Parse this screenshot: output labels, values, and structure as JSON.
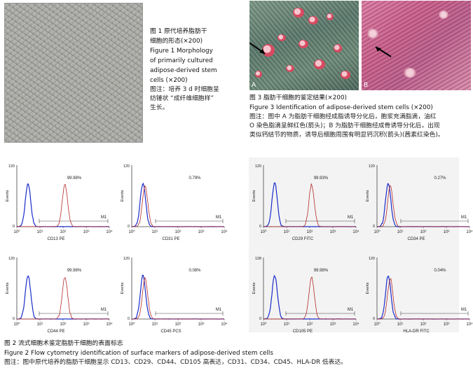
{
  "figure1": {
    "title_cn": "图 1   原代培养脂肪干细胞的形态(×200)",
    "title_cn_l1": "图 1   原代培养脂肪干",
    "title_cn_l2": "细胞的形态(×200)",
    "title_en_l1": "Figure 1   Morphology",
    "title_en_l2": "of primarily cultured",
    "title_en_l3": "adipose-derived stem",
    "title_en_l4": "cells (×200)",
    "note_l1": "图注：培养 3 d 时细胞呈",
    "note_l2": "纺锤状 “成纤维细胞样”",
    "note_l3": "生长。"
  },
  "figure3": {
    "label_a": "A",
    "label_b": "B",
    "title_cn": "图 3   脂肪干细胞的鉴定结果(×200)",
    "title_en": "Figure 3   Identification of adipose-derived stem cells (×200)",
    "note_l1": "图注：图中 A 为脂肪干细胞经成脂诱导分化后，胞浆充满脂滴，油红",
    "note_l2": "O 染色脂滴呈鲜红色(箭头)；B 为脂肪干细胞经成骨诱导分化后，出现",
    "note_l3": "类似钙结节的物质，诱导后细胞周围有明显钙沉积(箭头)(茜素红染色)。"
  },
  "figure2": {
    "title_cn": "图 2   流式细胞术鉴定脂肪干细胞的表面标志",
    "title_en": "Figure 2   Flow cytometry identification of surface markers of adipose-derived stem cells",
    "note": "图注：图中原代培养的脂肪干细胞呈示 CD13、CD29、CD44、CD105 高表达，CD31、CD34、CD45、HLA-DR 低表达。",
    "ylabel": "Events",
    "gate_label": "M1",
    "panels": [
      {
        "marker": "CD13 PE",
        "percent": "99.98%",
        "high": true,
        "ymax": "120"
      },
      {
        "marker": "CD31 PE",
        "percent": "0.79%",
        "high": false,
        "ymax": "120"
      },
      {
        "marker": "CD29 FITC",
        "percent": "99.93%",
        "high": true,
        "ymax": "120"
      },
      {
        "marker": "CD34 PE",
        "percent": "0.27%",
        "high": false,
        "ymax": "120"
      },
      {
        "marker": "CD44 PE",
        "percent": "99.98%",
        "high": true,
        "ymax": "120"
      },
      {
        "marker": "CD45 PCS",
        "percent": "0.08%",
        "high": false,
        "ymax": "120"
      },
      {
        "marker": "CD105 PE",
        "percent": "99.98%",
        "high": true,
        "ymax": "128"
      },
      {
        "marker": "HLA-DR FITC",
        "percent": "0.04%",
        "high": false,
        "ymax": "120"
      }
    ],
    "tick_labels": [
      "10⁰",
      "10¹",
      "10²",
      "10³",
      "10⁴"
    ],
    "ytick_zero": "0"
  }
}
